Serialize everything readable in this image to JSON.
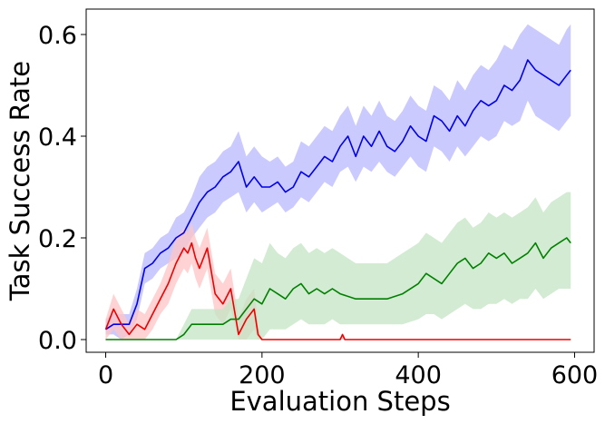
{
  "chart_data": {
    "type": "line",
    "title": "",
    "xlabel": "Evaluation Steps",
    "ylabel": "Task Success Rate",
    "xlim": [
      -25,
      625
    ],
    "ylim": [
      -0.025,
      0.65
    ],
    "xticks": [
      0,
      200,
      400,
      600
    ],
    "xtick_labels": [
      "0",
      "200",
      "400",
      "600"
    ],
    "yticks": [
      0.0,
      0.2,
      0.4,
      0.6
    ],
    "ytick_labels": [
      "0.0",
      "0.2",
      "0.4",
      "0.6"
    ],
    "grid": false,
    "legend": "none",
    "series": [
      {
        "color": "#0000ee",
        "band_color": "#b8b8ff",
        "x": [
          0,
          10,
          20,
          30,
          40,
          50,
          60,
          70,
          80,
          90,
          100,
          110,
          120,
          130,
          140,
          150,
          160,
          170,
          180,
          190,
          200,
          210,
          220,
          230,
          240,
          250,
          260,
          270,
          280,
          290,
          300,
          310,
          320,
          330,
          340,
          350,
          360,
          370,
          380,
          390,
          400,
          410,
          420,
          430,
          440,
          450,
          460,
          470,
          480,
          490,
          500,
          510,
          520,
          530,
          540,
          550,
          560,
          570,
          580,
          590,
          595
        ],
        "y": [
          0.02,
          0.03,
          0.03,
          0.03,
          0.07,
          0.14,
          0.15,
          0.17,
          0.18,
          0.2,
          0.21,
          0.24,
          0.27,
          0.29,
          0.3,
          0.32,
          0.33,
          0.35,
          0.3,
          0.32,
          0.3,
          0.3,
          0.31,
          0.29,
          0.3,
          0.33,
          0.32,
          0.34,
          0.36,
          0.35,
          0.38,
          0.4,
          0.36,
          0.4,
          0.38,
          0.41,
          0.38,
          0.37,
          0.39,
          0.42,
          0.4,
          0.39,
          0.44,
          0.43,
          0.41,
          0.44,
          0.42,
          0.45,
          0.47,
          0.46,
          0.47,
          0.5,
          0.49,
          0.51,
          0.55,
          0.53,
          0.52,
          0.51,
          0.5,
          0.52,
          0.53
        ],
        "lower": [
          0.01,
          0.01,
          0.0,
          0.01,
          0.04,
          0.11,
          0.12,
          0.14,
          0.15,
          0.16,
          0.17,
          0.2,
          0.22,
          0.24,
          0.25,
          0.27,
          0.28,
          0.29,
          0.25,
          0.27,
          0.25,
          0.26,
          0.27,
          0.25,
          0.26,
          0.28,
          0.27,
          0.29,
          0.31,
          0.3,
          0.33,
          0.34,
          0.31,
          0.34,
          0.33,
          0.35,
          0.33,
          0.32,
          0.34,
          0.36,
          0.34,
          0.33,
          0.38,
          0.37,
          0.35,
          0.38,
          0.36,
          0.38,
          0.4,
          0.39,
          0.4,
          0.43,
          0.42,
          0.43,
          0.47,
          0.44,
          0.43,
          0.42,
          0.41,
          0.43,
          0.44
        ],
        "upper": [
          0.04,
          0.05,
          0.05,
          0.05,
          0.1,
          0.17,
          0.18,
          0.2,
          0.21,
          0.24,
          0.25,
          0.28,
          0.32,
          0.34,
          0.35,
          0.37,
          0.38,
          0.41,
          0.36,
          0.38,
          0.36,
          0.35,
          0.36,
          0.34,
          0.35,
          0.39,
          0.38,
          0.4,
          0.42,
          0.41,
          0.44,
          0.46,
          0.42,
          0.46,
          0.44,
          0.47,
          0.44,
          0.43,
          0.45,
          0.48,
          0.46,
          0.45,
          0.5,
          0.49,
          0.47,
          0.51,
          0.49,
          0.52,
          0.54,
          0.53,
          0.55,
          0.58,
          0.57,
          0.6,
          0.62,
          0.61,
          0.6,
          0.59,
          0.58,
          0.61,
          0.62
        ]
      },
      {
        "color": "#ee0000",
        "band_color": "#ffc4c4",
        "x": [
          0,
          10,
          20,
          30,
          40,
          50,
          60,
          70,
          80,
          90,
          100,
          105,
          110,
          115,
          120,
          130,
          140,
          150,
          160,
          170,
          180,
          190,
          195,
          200,
          250,
          300,
          303,
          306,
          320,
          400,
          500,
          595
        ],
        "y": [
          0.02,
          0.06,
          0.03,
          0.01,
          0.03,
          0.02,
          0.05,
          0.08,
          0.11,
          0.15,
          0.18,
          0.17,
          0.19,
          0.16,
          0.14,
          0.18,
          0.09,
          0.07,
          0.1,
          0.01,
          0.04,
          0.06,
          0.01,
          0.0,
          0.0,
          0.0,
          0.01,
          0.0,
          0.0,
          0.0,
          0.0,
          0.0
        ],
        "lower": [
          0.0,
          0.02,
          0.0,
          0.0,
          0.0,
          0.0,
          0.02,
          0.05,
          0.07,
          0.11,
          0.14,
          0.13,
          0.15,
          0.12,
          0.1,
          0.14,
          0.05,
          0.03,
          0.06,
          0.0,
          0.0,
          0.02,
          0.0,
          0.0,
          0.0,
          0.0,
          0.0,
          0.0,
          0.0,
          0.0,
          0.0,
          0.0
        ],
        "upper": [
          0.04,
          0.09,
          0.06,
          0.03,
          0.06,
          0.05,
          0.08,
          0.11,
          0.15,
          0.2,
          0.22,
          0.21,
          0.23,
          0.2,
          0.18,
          0.22,
          0.13,
          0.11,
          0.14,
          0.04,
          0.08,
          0.1,
          0.03,
          0.0,
          0.0,
          0.0,
          0.01,
          0.0,
          0.0,
          0.0,
          0.0,
          0.0
        ]
      },
      {
        "color": "#008000",
        "band_color": "#c4e4c4",
        "x": [
          0,
          30,
          60,
          90,
          100,
          110,
          120,
          130,
          140,
          150,
          160,
          170,
          180,
          190,
          200,
          210,
          220,
          230,
          240,
          250,
          260,
          270,
          280,
          290,
          300,
          320,
          340,
          360,
          380,
          400,
          410,
          420,
          430,
          440,
          450,
          460,
          470,
          480,
          490,
          500,
          510,
          520,
          530,
          540,
          550,
          560,
          570,
          580,
          590,
          595
        ],
        "y": [
          0.0,
          0.0,
          0.0,
          0.0,
          0.01,
          0.03,
          0.03,
          0.03,
          0.03,
          0.03,
          0.04,
          0.04,
          0.06,
          0.08,
          0.07,
          0.1,
          0.09,
          0.08,
          0.1,
          0.11,
          0.09,
          0.1,
          0.09,
          0.1,
          0.09,
          0.08,
          0.08,
          0.08,
          0.09,
          0.11,
          0.13,
          0.12,
          0.11,
          0.13,
          0.15,
          0.16,
          0.14,
          0.15,
          0.17,
          0.16,
          0.17,
          0.15,
          0.16,
          0.17,
          0.19,
          0.16,
          0.18,
          0.19,
          0.2,
          0.19
        ],
        "lower": [
          0.0,
          0.0,
          0.0,
          0.0,
          0.0,
          0.0,
          0.0,
          0.0,
          0.0,
          0.0,
          0.0,
          0.0,
          0.0,
          0.0,
          0.0,
          0.02,
          0.02,
          0.02,
          0.03,
          0.04,
          0.03,
          0.03,
          0.03,
          0.04,
          0.03,
          0.03,
          0.03,
          0.03,
          0.03,
          0.04,
          0.05,
          0.05,
          0.04,
          0.05,
          0.06,
          0.07,
          0.06,
          0.06,
          0.07,
          0.07,
          0.08,
          0.07,
          0.08,
          0.08,
          0.1,
          0.08,
          0.09,
          0.1,
          0.1,
          0.1
        ],
        "upper": [
          0.0,
          0.0,
          0.0,
          0.0,
          0.03,
          0.06,
          0.06,
          0.06,
          0.06,
          0.06,
          0.08,
          0.08,
          0.12,
          0.16,
          0.15,
          0.19,
          0.17,
          0.16,
          0.18,
          0.19,
          0.17,
          0.18,
          0.17,
          0.18,
          0.17,
          0.15,
          0.15,
          0.15,
          0.17,
          0.19,
          0.21,
          0.2,
          0.19,
          0.21,
          0.23,
          0.24,
          0.22,
          0.23,
          0.25,
          0.24,
          0.25,
          0.24,
          0.25,
          0.26,
          0.28,
          0.25,
          0.27,
          0.28,
          0.29,
          0.29
        ]
      }
    ]
  }
}
